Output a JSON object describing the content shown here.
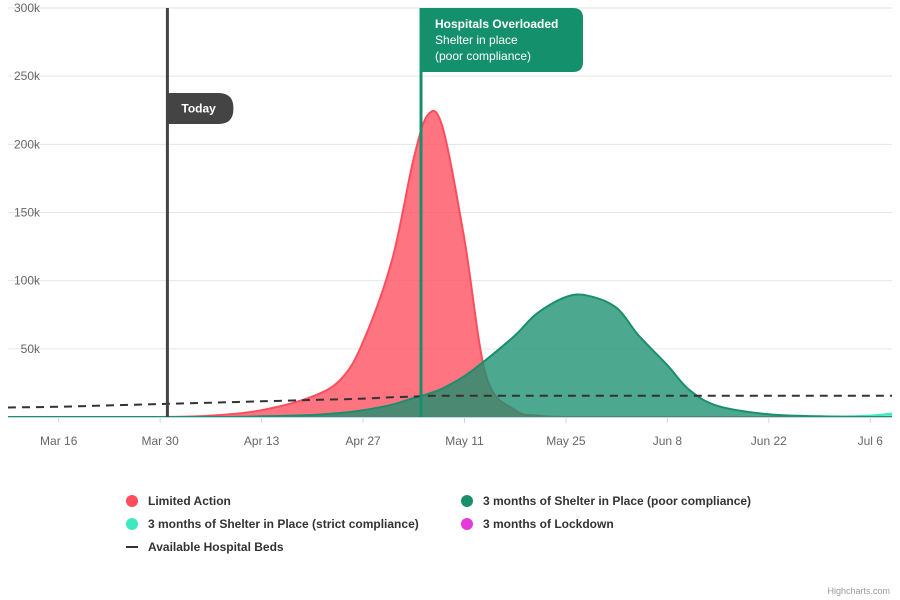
{
  "chart_data": {
    "type": "area",
    "title": "",
    "xlabel": "",
    "ylabel": "",
    "x_dates": [
      "2020-03-09",
      "2020-03-16",
      "2020-03-23",
      "2020-03-30",
      "2020-04-06",
      "2020-04-13",
      "2020-04-20",
      "2020-04-24",
      "2020-04-27",
      "2020-05-01",
      "2020-05-04",
      "2020-05-06",
      "2020-05-08",
      "2020-05-11",
      "2020-05-14",
      "2020-05-18",
      "2020-05-21",
      "2020-05-25",
      "2020-05-28",
      "2020-06-01",
      "2020-06-04",
      "2020-06-08",
      "2020-06-11",
      "2020-06-15",
      "2020-06-22",
      "2020-06-29",
      "2020-07-06",
      "2020-07-09"
    ],
    "ylim": [
      0,
      300000
    ],
    "yticks": [
      {
        "value": 0,
        "label": ""
      },
      {
        "value": 50000,
        "label": "50k"
      },
      {
        "value": 100000,
        "label": "100k"
      },
      {
        "value": 150000,
        "label": "150k"
      },
      {
        "value": 200000,
        "label": "200k"
      },
      {
        "value": 250000,
        "label": "250k"
      },
      {
        "value": 300000,
        "label": "300k"
      }
    ],
    "xticks": [
      {
        "date": "2020-03-16",
        "label": "Mar 16"
      },
      {
        "date": "2020-03-30",
        "label": "Mar 30"
      },
      {
        "date": "2020-04-13",
        "label": "Apr 13"
      },
      {
        "date": "2020-04-27",
        "label": "Apr 27"
      },
      {
        "date": "2020-05-11",
        "label": "May 11"
      },
      {
        "date": "2020-05-25",
        "label": "May 25"
      },
      {
        "date": "2020-06-08",
        "label": "Jun 8"
      },
      {
        "date": "2020-06-22",
        "label": "Jun 22"
      },
      {
        "date": "2020-07-06",
        "label": "Jul 6"
      }
    ],
    "xrange": [
      "2020-03-09",
      "2020-07-09"
    ],
    "grid": true,
    "legend_position": "bottom",
    "series": [
      {
        "name": "Limited Action",
        "color": "#ff4d5e",
        "kind": "area",
        "values": [
          0,
          0,
          0,
          0,
          1000,
          5000,
          15000,
          28000,
          55000,
          115000,
          190000,
          222000,
          212000,
          130000,
          30000,
          5000,
          1000,
          0,
          0,
          0,
          0,
          0,
          0,
          0,
          0,
          0,
          0,
          0
        ]
      },
      {
        "name": "3 months of Shelter in Place (poor compliance)",
        "color": "#1a8f6e",
        "kind": "area",
        "values": [
          0,
          0,
          0,
          0,
          0,
          500,
          1500,
          3000,
          5000,
          9000,
          14000,
          17000,
          21000,
          30000,
          42000,
          60000,
          76000,
          88000,
          89000,
          80000,
          60000,
          38000,
          20000,
          8000,
          2000,
          500,
          0,
          0
        ]
      },
      {
        "name": "3 months of Shelter in Place (strict compliance)",
        "color": "#3ee8c2",
        "kind": "area",
        "values": [
          0,
          0,
          0,
          0,
          0,
          0,
          0,
          0,
          0,
          0,
          0,
          0,
          0,
          0,
          0,
          0,
          0,
          0,
          0,
          0,
          0,
          0,
          0,
          0,
          0,
          0,
          1000,
          2500
        ]
      },
      {
        "name": "3 months of Lockdown",
        "color": "#e33ad9",
        "kind": "area",
        "values": [
          0,
          0,
          0,
          0,
          0,
          0,
          0,
          0,
          0,
          0,
          0,
          0,
          0,
          0,
          0,
          0,
          0,
          0,
          0,
          0,
          0,
          0,
          0,
          0,
          0,
          0,
          0,
          0
        ]
      },
      {
        "name": "Available Hospital Beds",
        "color": "#333333",
        "kind": "dashed-line",
        "values": [
          7000,
          7500,
          8500,
          9500,
          10500,
          11500,
          12500,
          13000,
          13500,
          14500,
          15000,
          15500,
          15600,
          15600,
          15600,
          15600,
          15600,
          15600,
          15600,
          15600,
          15600,
          15600,
          15600,
          15600,
          15600,
          15600,
          15600,
          15600
        ]
      }
    ],
    "plot_lines": [
      {
        "date": "2020-03-31",
        "color": "#444444",
        "label_lines": [
          "Today"
        ]
      },
      {
        "date": "2020-05-05",
        "color": "#14916c",
        "label_lines": [
          "Hospitals Overloaded",
          "Shelter in place",
          "(poor compliance)"
        ]
      }
    ]
  },
  "legend": {
    "items": [
      {
        "label": "Limited Action",
        "color": "#ff4d5e",
        "symbol": "dot"
      },
      {
        "label": "3 months of Shelter in Place (poor compliance)",
        "color": "#1a8f6e",
        "symbol": "dot"
      },
      {
        "label": "3 months of Shelter in Place (strict compliance)",
        "color": "#3ee8c2",
        "symbol": "dot"
      },
      {
        "label": "3 months of Lockdown",
        "color": "#e33ad9",
        "symbol": "dot"
      },
      {
        "label": "Available Hospital Beds",
        "color": "#333333",
        "symbol": "dash"
      }
    ]
  },
  "credits": "Highcharts.com"
}
